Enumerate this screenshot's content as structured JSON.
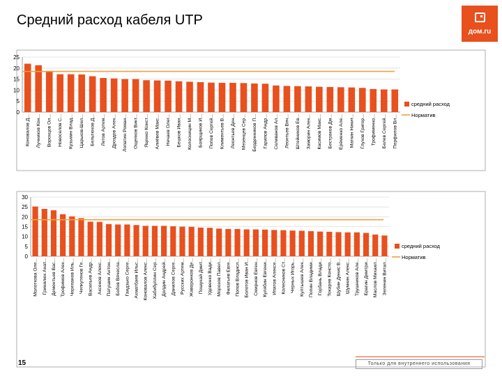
{
  "title": "Средний расход кабеля UTP",
  "logo": {
    "text": "дом.ru"
  },
  "page_number": "15",
  "footer_note": "Только для внутреннего использования",
  "colors": {
    "bar": "#e8501e",
    "norm": "#f0a040",
    "grid": "#d0d0d0"
  },
  "chart_data": [
    {
      "type": "bar",
      "ylim": [
        0,
        25
      ],
      "ticks": [
        0,
        5,
        10,
        15,
        20,
        25
      ],
      "norm": 18.5,
      "legend": [
        "средний расход",
        "Норматив"
      ],
      "categories": [
        "Коновалов Д...",
        "Лучников Кон...",
        "Ворохцов Ол...",
        "Новоселов С...",
        "Кузьмин Влад...",
        "Царьков-Шел...",
        "Бельтюков Д...",
        "Летов Артем...",
        "Дроздов Алек...",
        "Лопатин Роман...",
        "Ощепков Викт...",
        "Яценко Конст...",
        "Алиёвев Макс...",
        "Нечаев Олег...",
        "Бешков Иван...",
        "Колосницин М...",
        "Боярщиков И...",
        "Попов Сергей...",
        "Климентьев В...",
        "Леонтьев Ден...",
        "Мезенцев Сер...",
        "Берденников П...",
        "Гарипов Андр...",
        "Селиванов Ал...",
        "Леонтьев Вяч...",
        "Штейников Ев...",
        "Заморин Алек...",
        "Касимов Макс...",
        "Бестраков Дм...",
        "Ерёменко Але...",
        "Маткин Никит...",
        "Глухов Григор...",
        "Трофименко...",
        "Белев Сергей...",
        "Перфилов Вл..."
      ],
      "values": [
        22,
        21.3,
        18.5,
        17.2,
        17.2,
        17.1,
        16.3,
        15.5,
        15.3,
        15,
        15,
        14.5,
        14.4,
        14.3,
        14,
        13.8,
        13.6,
        13.4,
        13.3,
        13.3,
        13.2,
        13,
        12.9,
        12.1,
        11.9,
        11.8,
        11.7,
        11.5,
        11.4,
        11.3,
        11.2,
        11,
        10.5,
        10.3,
        10.3
      ]
    },
    {
      "type": "bar",
      "ylim": [
        0,
        30
      ],
      "ticks": [
        0,
        5,
        10,
        15,
        20,
        25,
        30
      ],
      "norm": 18.5,
      "legend": [
        "средний расход",
        "Норматив"
      ],
      "categories": [
        "Молоткова Оле...",
        "Гринилюк Анат...",
        "Дементьев Вас...",
        "Трофимов Алек...",
        "Черепанов Иль...",
        "Чепкутенов Ге...",
        "Васильев Андр...",
        "Аксенов Алекс...",
        "Патушин Антон...",
        "Бобов Вячесла...",
        "Гандзько Серге...",
        "Ахматбаев Ильс...",
        "Коновалов Алекс...",
        "Хабибуллин Сер...",
        "Долдин Андрей...",
        "Данилов Серге...",
        "Русских Артем...",
        "Жаворонков Де...",
        "Пошукай Дмит...",
        "Удовенко Вади...",
        "Морозов Павел...",
        "Филатьев Евге...",
        "Попов Владисл...",
        "Болотов Иван И...",
        "Смирнов Евген...",
        "Кулябин Евгени...",
        "Ипатов Алексе...",
        "Колесников Ст...",
        "Черных Игорь...",
        "Култышев Алек...",
        "Попин Владими...",
        "Горбань Влади...",
        "Токарев Консто...",
        "Шубин Денис В...",
        "Шумкин Алекс...",
        "Трушников Але...",
        "Брагин Дмитри...",
        "Маслов Михаил...",
        "Зеленин Витал..."
      ],
      "values": [
        25.2,
        24,
        23.3,
        21.3,
        20.2,
        19.3,
        17.5,
        17.4,
        16.3,
        16.1,
        16.1,
        15.8,
        15.4,
        15.4,
        15.4,
        15.2,
        15,
        14.9,
        14.5,
        14.4,
        14,
        13.8,
        13.8,
        13.6,
        13.6,
        13.5,
        13.3,
        13.2,
        13,
        12.9,
        12.7,
        12.5,
        12.4,
        12.2,
        12.1,
        12.1,
        11.8,
        11,
        10.5
      ]
    }
  ]
}
